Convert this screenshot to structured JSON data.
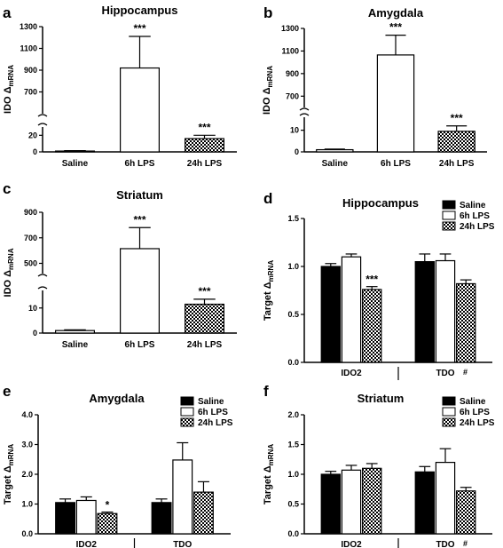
{
  "chart_data": [
    {
      "id": "a",
      "panel_label": "a",
      "type": "bar",
      "title": "Hippocampus",
      "ylabel": "IDO",
      "ylabel_sub": "mRNA",
      "categories": [
        "Saline",
        "6h LPS",
        "24h LPS"
      ],
      "values": [
        1,
        920,
        16
      ],
      "errors": [
        0.5,
        290,
        4
      ],
      "significance": [
        "",
        "***",
        "***"
      ],
      "fills": [
        "white",
        "white",
        "checker"
      ],
      "broken_axis": true,
      "segments": [
        {
          "range": [
            0,
            30
          ],
          "ticks": [
            "0",
            "20"
          ]
        },
        {
          "range": [
            500,
            1300
          ],
          "ticks": [
            "700",
            "900",
            "1100",
            "1300"
          ]
        }
      ]
    },
    {
      "id": "b",
      "panel_label": "b",
      "type": "bar",
      "title": "Amygdala",
      "ylabel": "IDO",
      "ylabel_sub": "mRNA",
      "categories": [
        "Saline",
        "6h LPS",
        "24h LPS"
      ],
      "values": [
        1,
        1065,
        9.5
      ],
      "errors": [
        0.3,
        175,
        2.5
      ],
      "significance": [
        "",
        "***",
        "***"
      ],
      "fills": [
        "white",
        "white",
        "checker"
      ],
      "broken_axis": true,
      "segments": [
        {
          "range": [
            0,
            16
          ],
          "ticks": [
            "0",
            "10"
          ]
        },
        {
          "range": [
            600,
            1300
          ],
          "ticks": [
            "700",
            "900",
            "1100",
            "1300"
          ]
        }
      ]
    },
    {
      "id": "c",
      "panel_label": "c",
      "type": "bar",
      "title": "Striatum",
      "ylabel": "IDO",
      "ylabel_sub": "mRNA",
      "categories": [
        "Saline",
        "6h LPS",
        "24h LPS"
      ],
      "values": [
        1,
        615,
        11.5
      ],
      "errors": [
        0.3,
        165,
        2
      ],
      "significance": [
        "",
        "***",
        "***"
      ],
      "fills": [
        "white",
        "white",
        "checker"
      ],
      "broken_axis": true,
      "segments": [
        {
          "range": [
            0,
            17
          ],
          "ticks": [
            "0",
            "10"
          ]
        },
        {
          "range": [
            420,
            900
          ],
          "ticks": [
            "500",
            "700",
            "900"
          ]
        }
      ]
    },
    {
      "id": "d",
      "panel_label": "d",
      "type": "bar",
      "title": "Hippocampus",
      "ylabel": "Target",
      "ylabel_sub": "mRNA",
      "ylim": [
        0,
        1.5
      ],
      "ticks": [
        "0.0",
        "0.5",
        "1.0",
        "1.5"
      ],
      "groups": [
        "IDO2",
        "TDO"
      ],
      "group_marks": [
        "",
        "#"
      ],
      "series": [
        {
          "name": "Saline",
          "fill": "black",
          "values": [
            1.0,
            1.05
          ],
          "errors": [
            0.03,
            0.08
          ]
        },
        {
          "name": "6h LPS",
          "fill": "white",
          "values": [
            1.1,
            1.06
          ],
          "errors": [
            0.03,
            0.07
          ]
        },
        {
          "name": "24h LPS",
          "fill": "checker",
          "values": [
            0.76,
            0.82
          ],
          "errors": [
            0.03,
            0.04
          ]
        }
      ],
      "significance": [
        [
          "",
          "",
          "***"
        ],
        [
          "",
          "",
          ""
        ]
      ],
      "legend": "top-right"
    },
    {
      "id": "e",
      "panel_label": "e",
      "type": "bar",
      "title": "Amygdala",
      "ylabel": "Target",
      "ylabel_sub": "mRNA",
      "ylim": [
        0,
        4.0
      ],
      "ticks": [
        "0.0",
        "1.0",
        "2.0",
        "3.0",
        "4.0"
      ],
      "groups": [
        "IDO2",
        "TDO"
      ],
      "group_marks": [
        "",
        ""
      ],
      "series": [
        {
          "name": "Saline",
          "fill": "black",
          "values": [
            1.05,
            1.05
          ],
          "errors": [
            0.12,
            0.12
          ]
        },
        {
          "name": "6h LPS",
          "fill": "white",
          "values": [
            1.12,
            2.48
          ],
          "errors": [
            0.12,
            0.58
          ]
        },
        {
          "name": "24h LPS",
          "fill": "checker",
          "values": [
            0.68,
            1.4
          ],
          "errors": [
            0.05,
            0.35
          ]
        }
      ],
      "significance": [
        [
          "",
          "",
          "*"
        ],
        [
          "",
          "",
          ""
        ]
      ],
      "legend": "top-right"
    },
    {
      "id": "f",
      "panel_label": "f",
      "type": "bar",
      "title": "Striatum",
      "ylabel": "Target",
      "ylabel_sub": "mRNA",
      "ylim": [
        0,
        2.0
      ],
      "ticks": [
        "0.0",
        "0.5",
        "1.0",
        "1.5",
        "2.0"
      ],
      "groups": [
        "IDO2",
        "TDO"
      ],
      "group_marks": [
        "",
        "#"
      ],
      "series": [
        {
          "name": "Saline",
          "fill": "black",
          "values": [
            1.0,
            1.04
          ],
          "errors": [
            0.05,
            0.09
          ]
        },
        {
          "name": "6h LPS",
          "fill": "white",
          "values": [
            1.07,
            1.2
          ],
          "errors": [
            0.08,
            0.23
          ]
        },
        {
          "name": "24h LPS",
          "fill": "checker",
          "values": [
            1.1,
            0.72
          ],
          "errors": [
            0.08,
            0.06
          ]
        }
      ],
      "significance": [
        [
          "",
          "",
          ""
        ],
        [
          "",
          "",
          ""
        ]
      ],
      "legend": "top-right"
    }
  ]
}
